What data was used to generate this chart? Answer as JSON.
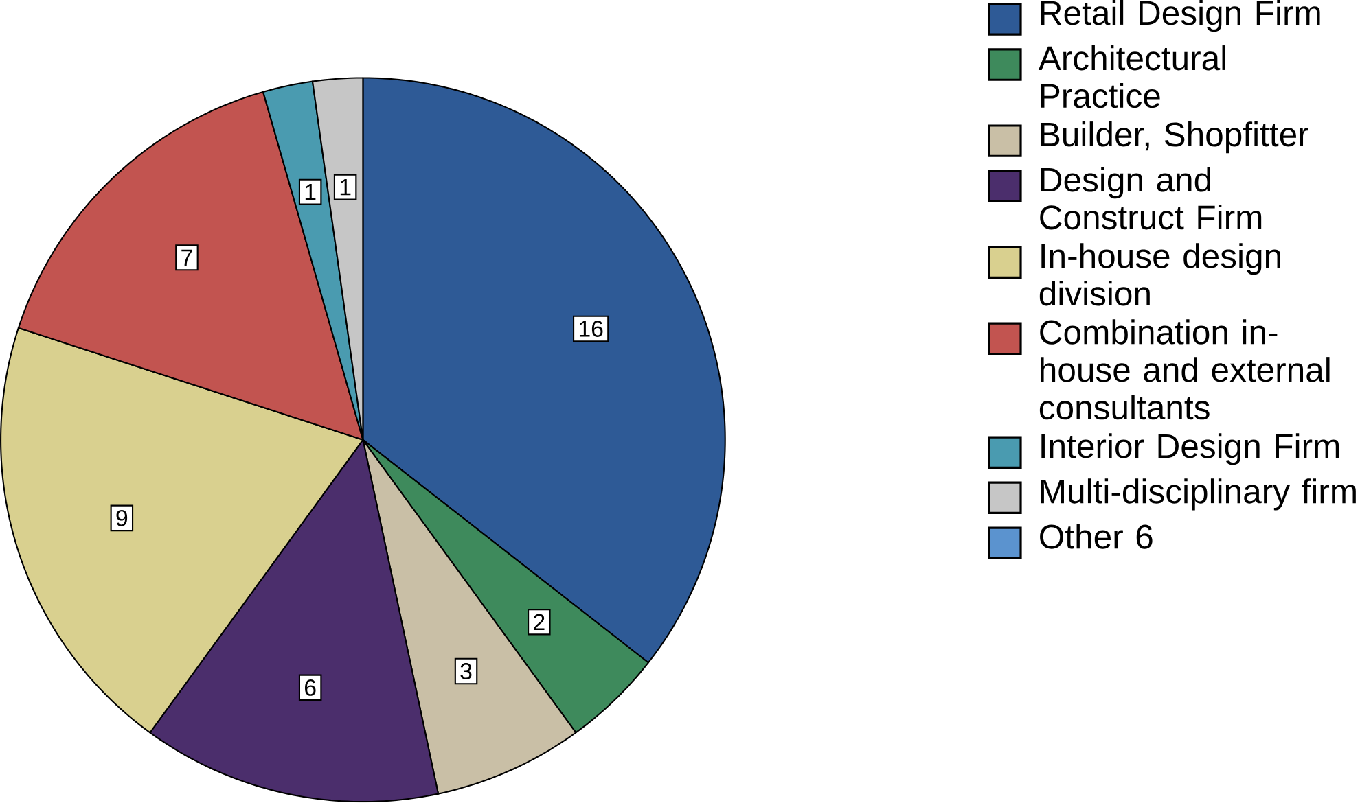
{
  "chart_data": {
    "type": "pie",
    "categories": [
      "Retail Design Firm",
      "Architectural Practice",
      "Builder, Shopfitter",
      "Design and Construct Firm",
      "In-house design division",
      "Combination in-house and external consultants",
      "Interior Design Firm",
      "Multi-disciplinary firm",
      "Other 6"
    ],
    "values": [
      16,
      2,
      3,
      6,
      9,
      7,
      1,
      1,
      null
    ],
    "colors": [
      "#2e5a96",
      "#3e8a5c",
      "#c9bfa6",
      "#4b2e6c",
      "#d9d08f",
      "#c25450",
      "#4a9bb0",
      "#c6c6c6",
      "#5b93cf"
    ],
    "data_labels": true,
    "legend": "right"
  }
}
